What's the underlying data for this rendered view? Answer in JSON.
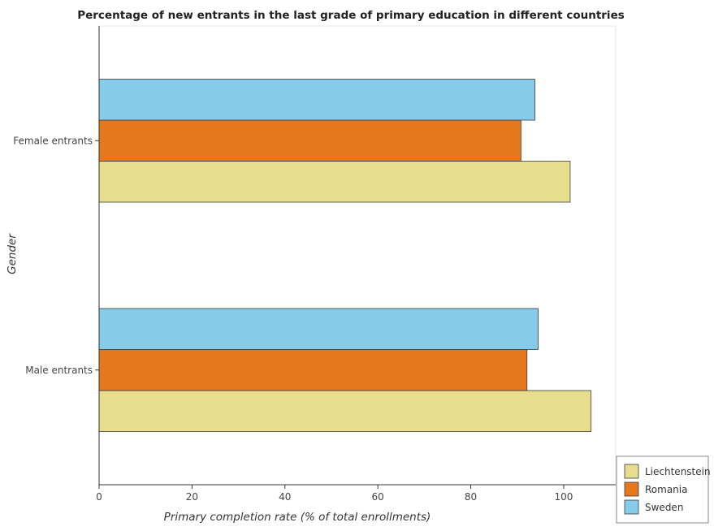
{
  "chart_data": {
    "type": "bar",
    "orientation": "horizontal",
    "title": "Percentage of new entrants in the last grade of primary education in different countries",
    "xlabel": "Primary completion rate (% of total enrollments)",
    "ylabel": "Gender",
    "categories": [
      "Female entrants",
      "Male entrants"
    ],
    "series": [
      {
        "name": "Liechtenstein",
        "color": "#e8dd8c",
        "values": [
          101.4,
          105.9
        ]
      },
      {
        "name": "Romania",
        "color": "#e5771e",
        "values": [
          90.8,
          92.1
        ]
      },
      {
        "name": "Sweden",
        "color": "#86cbea",
        "values": [
          93.8,
          94.5
        ]
      }
    ],
    "xlim": [
      0,
      111.2
    ],
    "xticks": [
      0,
      20,
      40,
      60,
      80,
      100
    ],
    "xtick_labels": [
      "0",
      "20",
      "40",
      "60",
      "80",
      "100"
    ],
    "grid": false,
    "legend_position": "bottom-right"
  }
}
